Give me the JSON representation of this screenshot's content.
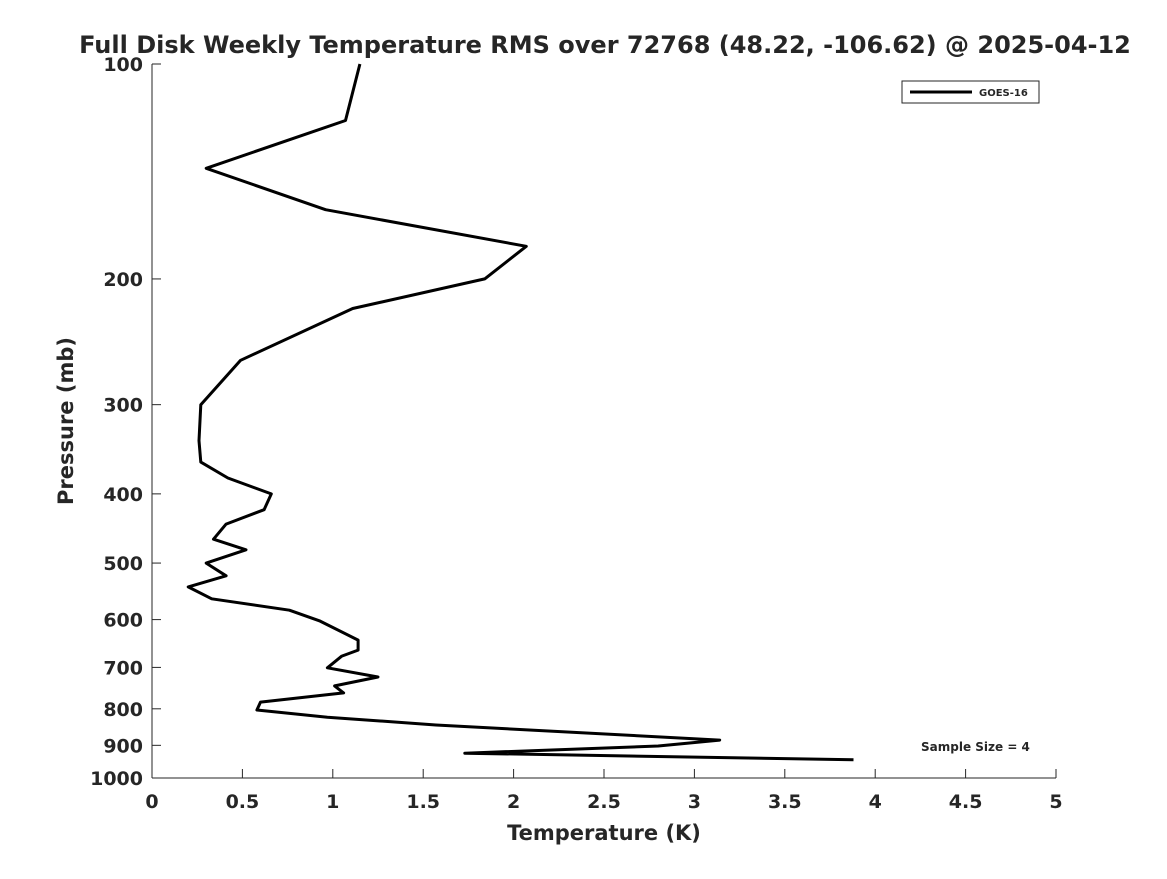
{
  "chart_data": {
    "type": "line",
    "title": "Full Disk Weekly Temperature RMS over 72768 (48.22, -106.62) @ 2025-04-12",
    "xlabel": "Temperature (K)",
    "ylabel": "Pressure (mb)",
    "xlim": [
      0,
      5
    ],
    "ylim": [
      100,
      1000
    ],
    "yscale": "log",
    "y_reversed": true,
    "grid": false,
    "x_ticks": [
      0,
      0.5,
      1,
      1.5,
      2,
      2.5,
      3,
      3.5,
      4,
      4.5,
      5
    ],
    "x_tick_labels": [
      "0",
      "0.5",
      "1",
      "1.5",
      "2",
      "2.5",
      "3",
      "3.5",
      "4",
      "4.5",
      "5"
    ],
    "y_ticks": [
      100,
      200,
      300,
      400,
      500,
      600,
      700,
      800,
      900,
      1000
    ],
    "y_tick_labels": [
      "100",
      "200",
      "300",
      "400",
      "500",
      "600",
      "700",
      "800",
      "900",
      "1000"
    ],
    "legend": {
      "placement": "top-right",
      "entries": [
        "GOES-16"
      ]
    },
    "annotation": "Sample Size = 4",
    "series": [
      {
        "name": "GOES-16",
        "color": "#000000",
        "points": [
          [
            1.15,
            100
          ],
          [
            1.07,
            120
          ],
          [
            0.3,
            140
          ],
          [
            0.96,
            160
          ],
          [
            2.07,
            180
          ],
          [
            1.84,
            200
          ],
          [
            1.11,
            220
          ],
          [
            0.49,
            260
          ],
          [
            0.27,
            300
          ],
          [
            0.26,
            337
          ],
          [
            0.27,
            361
          ],
          [
            0.42,
            380
          ],
          [
            0.66,
            400
          ],
          [
            0.62,
            421
          ],
          [
            0.41,
            441
          ],
          [
            0.34,
            463
          ],
          [
            0.52,
            479
          ],
          [
            0.3,
            500
          ],
          [
            0.41,
            521
          ],
          [
            0.2,
            540
          ],
          [
            0.33,
            561
          ],
          [
            0.76,
            582
          ],
          [
            0.93,
            603
          ],
          [
            1.14,
            641
          ],
          [
            1.14,
            662
          ],
          [
            1.05,
            675
          ],
          [
            0.97,
            701
          ],
          [
            1.25,
            722
          ],
          [
            1.01,
            743
          ],
          [
            1.06,
            760
          ],
          [
            0.6,
            783
          ],
          [
            0.58,
            803
          ],
          [
            0.97,
            822
          ],
          [
            1.57,
            843
          ],
          [
            3.14,
            885
          ],
          [
            2.8,
            902
          ],
          [
            1.73,
            923
          ],
          [
            3.88,
            943
          ]
        ]
      }
    ]
  }
}
